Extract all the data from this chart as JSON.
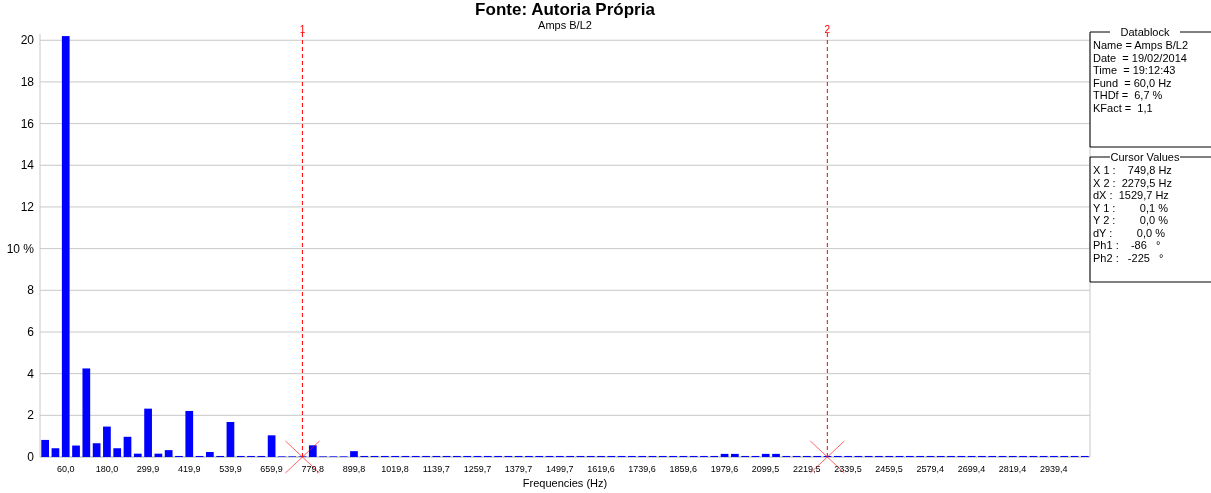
{
  "chart_data": {
    "type": "bar",
    "title": "Fonte: Autoria Própria",
    "subtitle": "Amps B/L2",
    "xlabel": "Frequencies (Hz)",
    "x": [
      0,
      30,
      60,
      90,
      120,
      150,
      180,
      210,
      240,
      270,
      300,
      330,
      360,
      390,
      420,
      450,
      480,
      510,
      540,
      570,
      600,
      630,
      660,
      690,
      720,
      750,
      780,
      810,
      840,
      870,
      900,
      930,
      960,
      990,
      1020,
      1050,
      1080,
      1110,
      1140,
      1170,
      1200,
      1230,
      1260,
      1290,
      1320,
      1350,
      1380,
      1410,
      1440,
      1470,
      1500,
      1530,
      1560,
      1590,
      1620,
      1650,
      1680,
      1710,
      1740,
      1770,
      1800,
      1830,
      1860,
      1890,
      1920,
      1950,
      1980,
      2010,
      2040,
      2070,
      2100,
      2130,
      2160,
      2190,
      2220,
      2250,
      2280,
      2310,
      2340,
      2370,
      2400,
      2430,
      2460,
      2490,
      2520,
      2550,
      2580,
      2610,
      2640,
      2670,
      2700,
      2730,
      2760,
      2790,
      2820,
      2850,
      2880,
      2910,
      2940,
      2970,
      3000,
      3030
    ],
    "values": [
      0.82,
      0.42,
      20.2,
      0.55,
      4.25,
      0.66,
      1.46,
      0.42,
      0.97,
      0.16,
      2.32,
      0.16,
      0.33,
      0.05,
      2.21,
      0.05,
      0.24,
      0.05,
      1.68,
      0.05,
      0.05,
      0.05,
      1.04,
      0.03,
      0.03,
      0.03,
      0.56,
      0.03,
      0.03,
      0.03,
      0.28,
      0.05,
      0.05,
      0.05,
      0.05,
      0.05,
      0.05,
      0.05,
      0.05,
      0.05,
      0.05,
      0.05,
      0.05,
      0.05,
      0.05,
      0.05,
      0.05,
      0.05,
      0.05,
      0.05,
      0.05,
      0.05,
      0.05,
      0.05,
      0.05,
      0.05,
      0.05,
      0.05,
      0.05,
      0.05,
      0.05,
      0.05,
      0.05,
      0.05,
      0.05,
      0.05,
      0.15,
      0.15,
      0.05,
      0.05,
      0.15,
      0.15,
      0.05,
      0.05,
      0.05,
      0.05,
      0.05,
      0.05,
      0.05,
      0.05,
      0.05,
      0.05,
      0.05,
      0.05,
      0.05,
      0.05,
      0.05,
      0.05,
      0.05,
      0.05,
      0.05,
      0.05,
      0.05,
      0.05,
      0.05,
      0.05,
      0.05,
      0.05,
      0.05,
      0.05,
      0.05,
      0.05
    ],
    "color": "#0000ff",
    "xlim": [
      -15,
      3045
    ],
    "xticks": [
      {
        "value": 60,
        "label": "60,0"
      },
      {
        "value": 180,
        "label": "180,0"
      },
      {
        "value": 299.9,
        "label": "299,9"
      },
      {
        "value": 419.9,
        "label": "419,9"
      },
      {
        "value": 539.9,
        "label": "539,9"
      },
      {
        "value": 659.9,
        "label": "659,9"
      },
      {
        "value": 779.8,
        "label": "779,8"
      },
      {
        "value": 899.8,
        "label": "899,8"
      },
      {
        "value": 1019.8,
        "label": "1019,8"
      },
      {
        "value": 1139.7,
        "label": "1139,7"
      },
      {
        "value": 1259.7,
        "label": "1259,7"
      },
      {
        "value": 1379.7,
        "label": "1379,7"
      },
      {
        "value": 1499.7,
        "label": "1499,7"
      },
      {
        "value": 1619.6,
        "label": "1619,6"
      },
      {
        "value": 1739.6,
        "label": "1739,6"
      },
      {
        "value": 1859.6,
        "label": "1859,6"
      },
      {
        "value": 1979.6,
        "label": "1979,6"
      },
      {
        "value": 2099.5,
        "label": "2099,5"
      },
      {
        "value": 2219.5,
        "label": "2219,5"
      },
      {
        "value": 2339.5,
        "label": "2339,5"
      },
      {
        "value": 2459.5,
        "label": "2459,5"
      },
      {
        "value": 2579.4,
        "label": "2579,4"
      },
      {
        "value": 2699.4,
        "label": "2699,4"
      },
      {
        "value": 2819.4,
        "label": "2819,4"
      },
      {
        "value": 2939.4,
        "label": "2939,4"
      }
    ],
    "ylim": [
      0,
      20.3
    ],
    "yticks": [
      0,
      2,
      4,
      6,
      8,
      {
        "value": 10,
        "label": "10 %"
      },
      12,
      14,
      16,
      18,
      20
    ],
    "grid": "y",
    "ref_lines": [
      {
        "axis": "x",
        "value": 749.8,
        "color": "#ff0000",
        "line_style": "dashed"
      },
      {
        "axis": "x",
        "value": 2279.5,
        "color": "#ff0000",
        "line_style": "dashed"
      }
    ],
    "annotations": [
      {
        "text": "1",
        "x": 749.8,
        "y": 20.3
      },
      {
        "text": "2",
        "x": 2279.5,
        "y": 20.3
      },
      "Datablock",
      "Name = Amps B/L2",
      "Date  = 19/02/2014",
      "Time  = 19:12:43",
      "Fund  = 60,0 Hz",
      "THDf =  6,7 %",
      "KFact =  1,1",
      "Cursor Values",
      "X 1 :    749,8 Hz",
      "X 2 :  2279,5 Hz",
      "dX :  1529,7 Hz",
      "Y 1 :        0,1 %",
      "Y 2 :        0,0 %",
      "dY :        0,0 %",
      "Ph1 :    -86   °",
      "Ph2 :   -225   °"
    ]
  }
}
